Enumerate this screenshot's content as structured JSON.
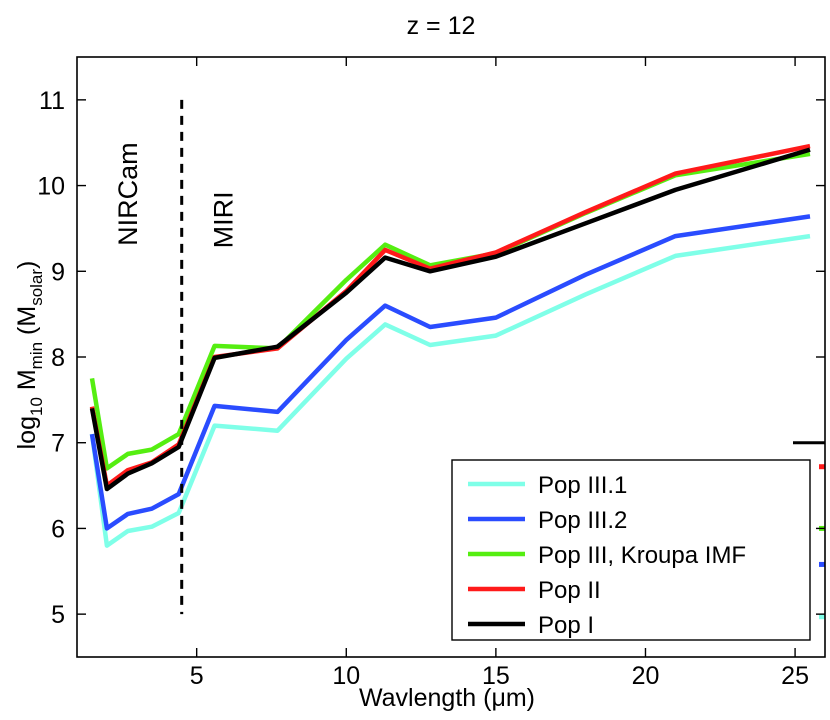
{
  "chart_data": {
    "type": "line",
    "title": "z = 12",
    "xlabel": "Wavlength (μm)",
    "ylabel": {
      "prefix": "log",
      "prefix_sub": "10",
      "main": " M",
      "main_sub": "min",
      "paren_open": " (M",
      "paren_sub": "solar",
      "paren_close": ")"
    },
    "xlim": [
      1,
      26
    ],
    "ylim": [
      4.5,
      11.5
    ],
    "xticks": [
      5,
      10,
      15,
      20,
      25
    ],
    "yticks": [
      5,
      6,
      7,
      8,
      9,
      10,
      11
    ],
    "x": [
      1.5,
      2.0,
      2.7,
      3.5,
      4.4,
      5.6,
      7.7,
      10.0,
      11.3,
      12.8,
      15.0,
      18.0,
      21.0,
      25.5
    ],
    "series": [
      {
        "name": "Pop III.1",
        "color": "#7fffe8",
        "values": [
          7.1,
          5.8,
          5.97,
          6.02,
          6.18,
          7.2,
          7.14,
          7.98,
          8.38,
          8.14,
          8.25,
          8.73,
          9.18,
          9.41
        ]
      },
      {
        "name": "Pop III.2",
        "color": "#2a4cff",
        "values": [
          7.1,
          6.0,
          6.17,
          6.23,
          6.4,
          7.43,
          7.36,
          8.2,
          8.6,
          8.35,
          8.46,
          8.96,
          9.41,
          9.64
        ]
      },
      {
        "name": "Pop III, Kroupa IMF",
        "color": "#55ee11",
        "values": [
          7.75,
          6.7,
          6.87,
          6.92,
          7.1,
          8.13,
          8.1,
          8.9,
          9.31,
          9.07,
          9.21,
          9.68,
          10.12,
          10.37
        ]
      },
      {
        "name": "Pop II",
        "color": "#ff1a1a",
        "values": [
          7.42,
          6.5,
          6.68,
          6.77,
          6.98,
          8.0,
          8.1,
          8.77,
          9.25,
          9.03,
          9.22,
          9.69,
          10.14,
          10.46
        ]
      },
      {
        "name": "Pop I",
        "color": "#000000",
        "values": [
          7.4,
          6.46,
          6.64,
          6.76,
          6.95,
          7.99,
          8.12,
          8.75,
          9.16,
          9.0,
          9.17,
          9.56,
          9.95,
          10.42
        ]
      }
    ],
    "divider": {
      "x": 4.5,
      "y_from": 5.0,
      "y_to": 11.0
    },
    "region_labels": [
      {
        "text": "NIRCam",
        "x": 3.0,
        "y": 9.9
      },
      {
        "text": "MIRI",
        "x": 6.2,
        "y": 9.6
      }
    ],
    "right_edge_markers": [
      {
        "y": 7.0,
        "color": "#000000"
      },
      {
        "y": 6.72,
        "color": "#ff1a1a"
      },
      {
        "y": 6.0,
        "color": "#55ee11"
      },
      {
        "y": 5.58,
        "color": "#2a4cff"
      },
      {
        "y": 4.97,
        "color": "#7fffe8"
      }
    ],
    "legend_location": "lower-right"
  }
}
